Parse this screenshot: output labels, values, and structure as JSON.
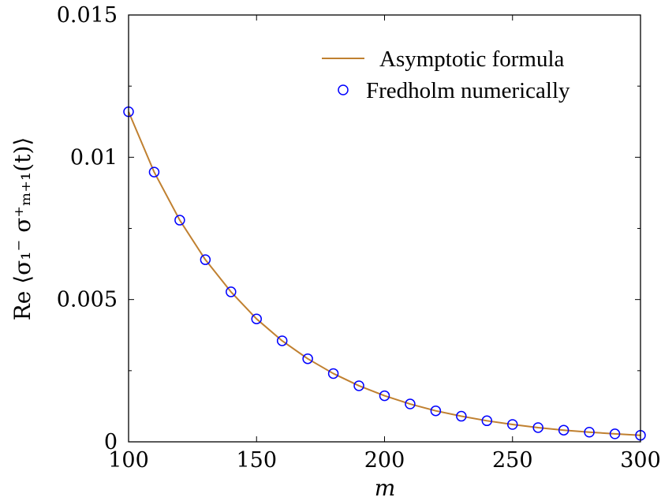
{
  "chart_data": {
    "type": "line",
    "xlabel": "m",
    "ylabel": "Re ⟨σ₁⁻ σ⁺ₘ₊₁(t)⟩",
    "xlim": [
      100,
      300
    ],
    "ylim": [
      0,
      0.015
    ],
    "x_ticks": [
      100,
      150,
      200,
      250,
      300
    ],
    "x_tick_labels": [
      "100",
      "150",
      "200",
      "250",
      "300"
    ],
    "y_ticks": [
      0,
      0.005,
      0.01,
      0.015
    ],
    "y_tick_labels": [
      "0",
      "0.005",
      "0.01",
      "0.015"
    ],
    "grid": false,
    "legend_position": "top-right",
    "series": [
      {
        "name": "Asymptotic formula",
        "kind": "line",
        "color": "#c08030",
        "x": [
          100,
          110,
          120,
          130,
          140,
          150,
          160,
          170,
          180,
          190,
          200,
          210,
          220,
          230,
          240,
          250,
          260,
          270,
          280,
          290,
          300
        ],
        "values": [
          0.0116,
          0.00948,
          0.00779,
          0.0064,
          0.00527,
          0.00432,
          0.00355,
          0.00292,
          0.0024,
          0.00197,
          0.00162,
          0.00133,
          0.00109,
          0.0009,
          0.00074,
          0.00061,
          0.0005,
          0.00041,
          0.00034,
          0.00028,
          0.00023
        ]
      },
      {
        "name": "Fredholm numerically",
        "kind": "markers",
        "color": "#0000ff",
        "x": [
          100,
          110,
          120,
          130,
          140,
          150,
          160,
          170,
          180,
          190,
          200,
          210,
          220,
          230,
          240,
          250,
          260,
          270,
          280,
          290,
          300
        ],
        "values": [
          0.0116,
          0.00948,
          0.00779,
          0.0064,
          0.00527,
          0.00432,
          0.00355,
          0.00292,
          0.0024,
          0.00197,
          0.00162,
          0.00133,
          0.00109,
          0.0009,
          0.00074,
          0.00061,
          0.0005,
          0.00041,
          0.00034,
          0.00028,
          0.00023
        ]
      }
    ]
  }
}
